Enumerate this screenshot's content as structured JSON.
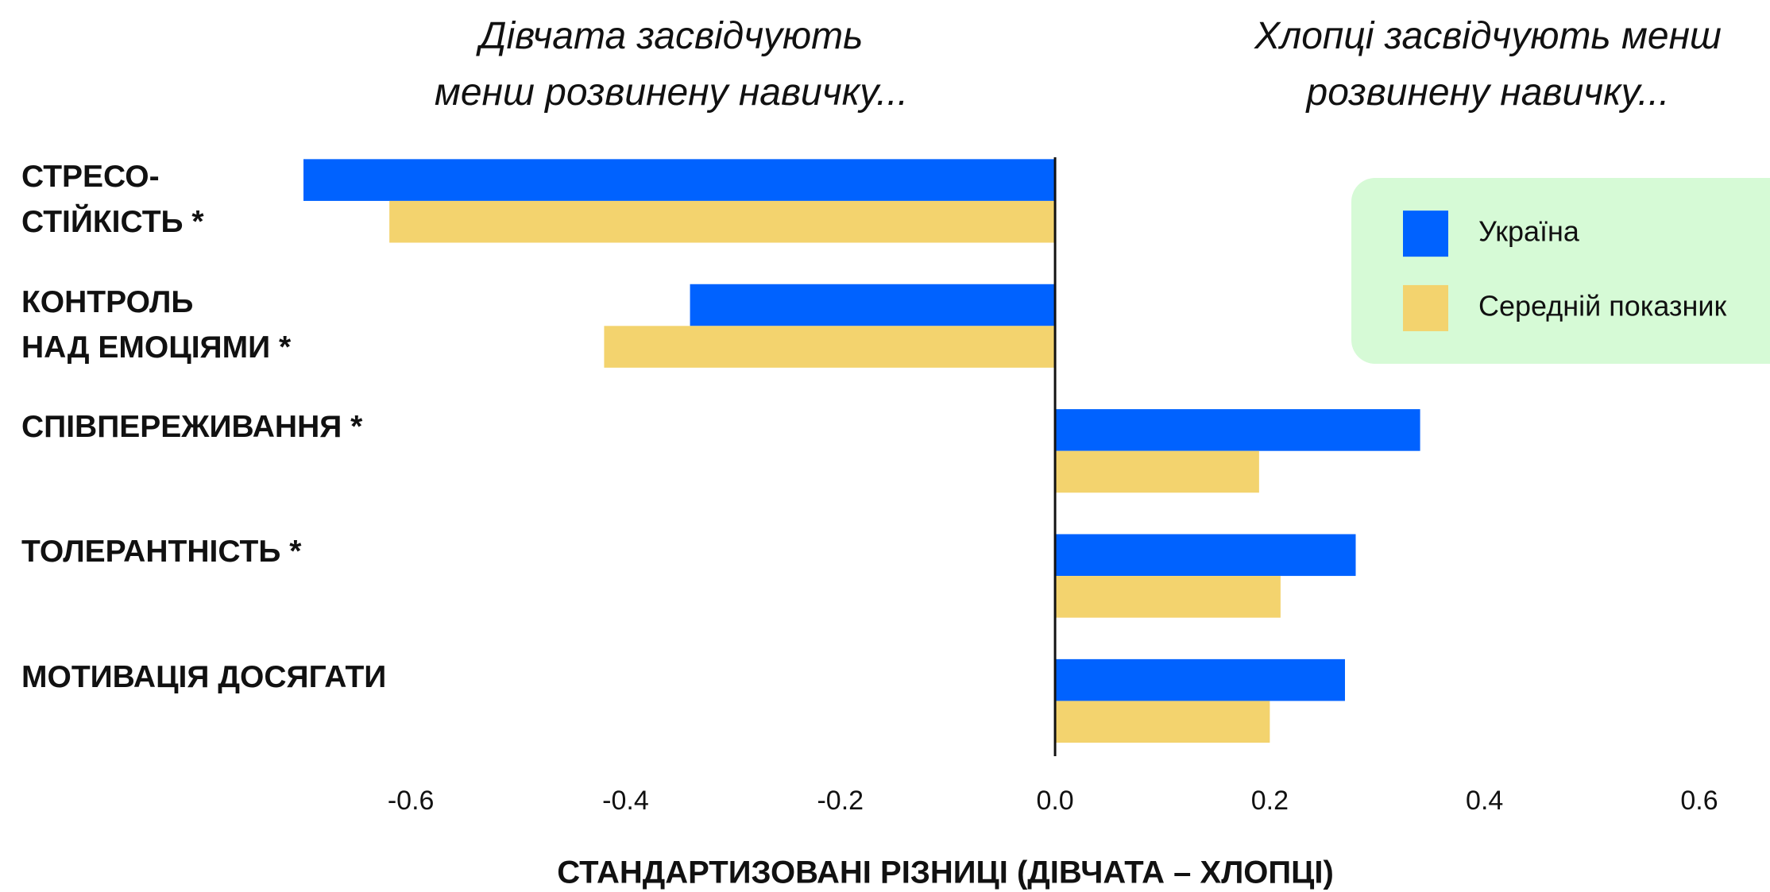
{
  "chart_data": {
    "type": "bar",
    "orientation": "horizontal",
    "annotations": [
      "Дівчата засвідчують менш розвинену навичку...",
      "Хлопці засвідчують менш розвинену навичку..."
    ],
    "categories": [
      "СТРЕСО-\nСТІЙКІСТЬ *",
      "КОНТРОЛЬ\nНАД ЕМОЦІЯМИ *",
      "СПІВПЕРЕЖИВАННЯ *",
      "ТОЛЕРАНТНІСТЬ *",
      "МОТИВАЦІЯ ДОСЯГАТИ"
    ],
    "series": [
      {
        "name": "Україна",
        "color": "#0062ff",
        "values": [
          -0.7,
          -0.34,
          0.34,
          0.28,
          0.27
        ]
      },
      {
        "name": "Середній показник",
        "color": "#f3d36e",
        "values": [
          -0.62,
          -0.42,
          0.19,
          0.21,
          0.2
        ]
      }
    ],
    "xlabel": "СТАНДАРТИЗОВАНІ РІЗНИЦІ (ДІВЧАТА – ХЛОПЦІ)",
    "xlim": [
      -0.7,
      0.6
    ],
    "xticks": [
      {
        "value": -0.6,
        "label": "-0.6"
      },
      {
        "value": -0.4,
        "label": "-0.4"
      },
      {
        "value": -0.2,
        "label": "-0.2"
      },
      {
        "value": 0,
        "label": "0.0"
      },
      {
        "value": 0.2,
        "label": "0.2"
      },
      {
        "value": 0.4,
        "label": "0.4"
      },
      {
        "value": 0.6,
        "label": "0.6"
      }
    ],
    "grid": false,
    "legend_position": "upper right"
  }
}
